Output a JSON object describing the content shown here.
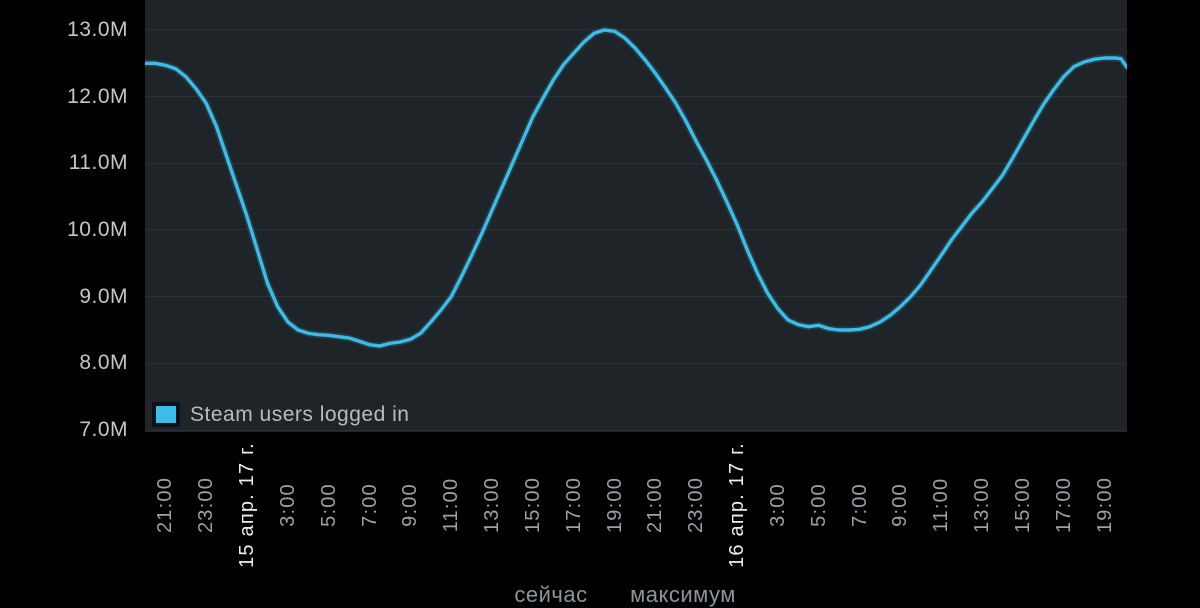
{
  "colors": {
    "page_background": "#000000",
    "plot_background": "#1f2428",
    "gridline": "#2c3136",
    "line": "#3cbde9",
    "y_label": "#c2c7ca",
    "x_time_label": "#9aa1a7",
    "x_date_label": "#eceef0",
    "legend_text": "#b6bcc0",
    "legend_swatch": "#3cbde9",
    "legend_swatch_border": "#0c1219",
    "footer_text": "#8d949a"
  },
  "legend": {
    "label": "Steam users logged in"
  },
  "footer": {
    "now_label": "сейчас",
    "max_label": "максимум"
  },
  "chart_data": {
    "type": "line",
    "grid": "horizontal",
    "legend_position": "bottom-left",
    "ylim": [
      6.97,
      13.45
    ],
    "x_hours_total": 48.1,
    "yticks": [
      {
        "v": 13,
        "label": "13.0M"
      },
      {
        "v": 12,
        "label": "12.0M"
      },
      {
        "v": 11,
        "label": "11.0M"
      },
      {
        "v": 10,
        "label": "10.0M"
      },
      {
        "v": 9,
        "label": "9.0M"
      },
      {
        "v": 8,
        "label": "8.0M"
      },
      {
        "v": 7,
        "label": "7.0M"
      }
    ],
    "xticks": [
      {
        "t": 1,
        "label": "21:00",
        "date": false
      },
      {
        "t": 3,
        "label": "23:00",
        "date": false
      },
      {
        "t": 5,
        "label": "15 апр. 17 г.",
        "date": true
      },
      {
        "t": 7,
        "label": "3:00",
        "date": false
      },
      {
        "t": 9,
        "label": "5:00",
        "date": false
      },
      {
        "t": 11,
        "label": "7:00",
        "date": false
      },
      {
        "t": 13,
        "label": "9:00",
        "date": false
      },
      {
        "t": 15,
        "label": "11:00",
        "date": false
      },
      {
        "t": 17,
        "label": "13:00",
        "date": false
      },
      {
        "t": 19,
        "label": "15:00",
        "date": false
      },
      {
        "t": 21,
        "label": "17:00",
        "date": false
      },
      {
        "t": 23,
        "label": "19:00",
        "date": false
      },
      {
        "t": 25,
        "label": "21:00",
        "date": false
      },
      {
        "t": 27,
        "label": "23:00",
        "date": false
      },
      {
        "t": 29,
        "label": "16 апр. 17 г.",
        "date": true
      },
      {
        "t": 31,
        "label": "3:00",
        "date": false
      },
      {
        "t": 33,
        "label": "5:00",
        "date": false
      },
      {
        "t": 35,
        "label": "7:00",
        "date": false
      },
      {
        "t": 37,
        "label": "9:00",
        "date": false
      },
      {
        "t": 39,
        "label": "11:00",
        "date": false
      },
      {
        "t": 41,
        "label": "13:00",
        "date": false
      },
      {
        "t": 43,
        "label": "15:00",
        "date": false
      },
      {
        "t": 45,
        "label": "17:00",
        "date": false
      },
      {
        "t": 47,
        "label": "19:00",
        "date": false
      }
    ],
    "series": [
      {
        "name": "Steam users logged in",
        "color": "#3cbde9",
        "units": "millions of users, t = hours from chart start (20:00)",
        "points": [
          [
            0,
            12.5
          ],
          [
            0.5,
            12.5
          ],
          [
            1,
            12.47
          ],
          [
            1.5,
            12.42
          ],
          [
            2,
            12.3
          ],
          [
            2.5,
            12.12
          ],
          [
            3,
            11.9
          ],
          [
            3.5,
            11.55
          ],
          [
            4,
            11.1
          ],
          [
            4.5,
            10.65
          ],
          [
            5,
            10.2
          ],
          [
            5.5,
            9.7
          ],
          [
            6,
            9.2
          ],
          [
            6.5,
            8.85
          ],
          [
            7,
            8.62
          ],
          [
            7.5,
            8.5
          ],
          [
            8,
            8.45
          ],
          [
            8.5,
            8.43
          ],
          [
            9,
            8.42
          ],
          [
            9.5,
            8.4
          ],
          [
            10,
            8.38
          ],
          [
            10.5,
            8.33
          ],
          [
            11,
            8.28
          ],
          [
            11.5,
            8.26
          ],
          [
            12,
            8.3
          ],
          [
            12.5,
            8.32
          ],
          [
            13,
            8.36
          ],
          [
            13.5,
            8.45
          ],
          [
            14,
            8.62
          ],
          [
            14.5,
            8.8
          ],
          [
            15,
            9.0
          ],
          [
            15.5,
            9.3
          ],
          [
            16,
            9.62
          ],
          [
            16.5,
            9.95
          ],
          [
            17,
            10.3
          ],
          [
            17.5,
            10.65
          ],
          [
            18,
            11.0
          ],
          [
            18.5,
            11.35
          ],
          [
            19,
            11.7
          ],
          [
            19.5,
            11.98
          ],
          [
            20,
            12.25
          ],
          [
            20.5,
            12.48
          ],
          [
            21,
            12.65
          ],
          [
            21.5,
            12.82
          ],
          [
            22,
            12.95
          ],
          [
            22.5,
            13.0
          ],
          [
            23,
            12.98
          ],
          [
            23.5,
            12.88
          ],
          [
            24,
            12.73
          ],
          [
            24.5,
            12.55
          ],
          [
            25,
            12.35
          ],
          [
            25.5,
            12.13
          ],
          [
            26,
            11.9
          ],
          [
            26.5,
            11.63
          ],
          [
            27,
            11.33
          ],
          [
            27.5,
            11.05
          ],
          [
            28,
            10.75
          ],
          [
            28.5,
            10.42
          ],
          [
            29,
            10.08
          ],
          [
            29.5,
            9.7
          ],
          [
            30,
            9.35
          ],
          [
            30.5,
            9.05
          ],
          [
            31,
            8.82
          ],
          [
            31.5,
            8.65
          ],
          [
            32,
            8.58
          ],
          [
            32.5,
            8.55
          ],
          [
            33,
            8.57
          ],
          [
            33.5,
            8.52
          ],
          [
            34,
            8.5
          ],
          [
            34.5,
            8.5
          ],
          [
            35,
            8.51
          ],
          [
            35.5,
            8.55
          ],
          [
            36,
            8.62
          ],
          [
            36.5,
            8.72
          ],
          [
            37,
            8.85
          ],
          [
            37.5,
            9.0
          ],
          [
            38,
            9.18
          ],
          [
            38.5,
            9.4
          ],
          [
            39,
            9.62
          ],
          [
            39.5,
            9.85
          ],
          [
            40,
            10.05
          ],
          [
            40.5,
            10.25
          ],
          [
            41,
            10.42
          ],
          [
            41.5,
            10.62
          ],
          [
            42,
            10.82
          ],
          [
            42.5,
            11.08
          ],
          [
            43,
            11.35
          ],
          [
            43.5,
            11.62
          ],
          [
            44,
            11.88
          ],
          [
            44.5,
            12.1
          ],
          [
            45,
            12.3
          ],
          [
            45.5,
            12.45
          ],
          [
            46,
            12.52
          ],
          [
            46.5,
            12.56
          ],
          [
            47,
            12.58
          ],
          [
            47.5,
            12.58
          ],
          [
            47.8,
            12.57
          ],
          [
            48.1,
            12.44
          ]
        ]
      }
    ]
  }
}
